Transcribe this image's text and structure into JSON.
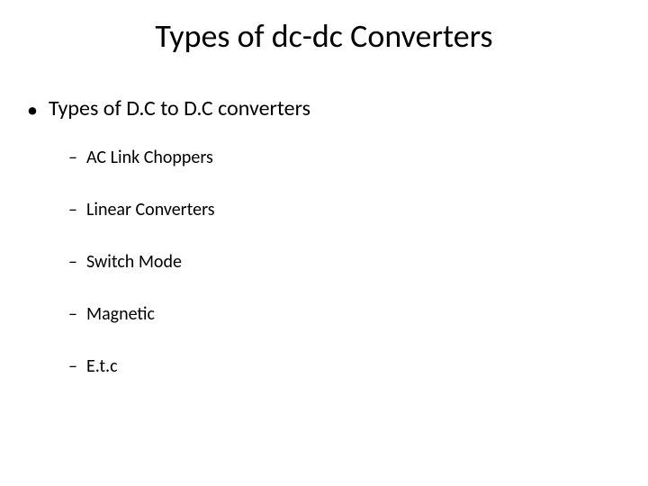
{
  "slide": {
    "title": "Types of dc-dc Converters",
    "level1": {
      "bullet": "•",
      "text": "Types of D.C to D.C converters"
    },
    "level2": {
      "bullet": "–",
      "items": [
        "AC Link Choppers",
        "Linear Converters",
        "Switch Mode",
        "Magnetic",
        "E.t.c"
      ]
    }
  },
  "styling": {
    "background_color": "#ffffff",
    "text_color": "#000000",
    "title_fontsize": 36,
    "level1_fontsize": 24,
    "level2_fontsize": 20,
    "font_family": "Calibri"
  }
}
